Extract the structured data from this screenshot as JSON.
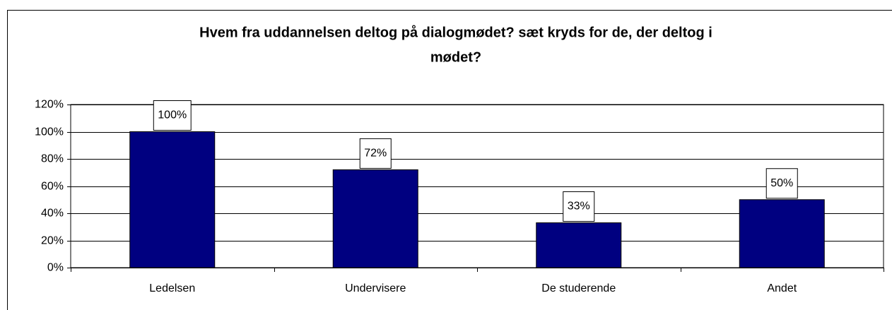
{
  "chart_data": {
    "type": "bar",
    "title": "Hvem fra uddannelsen deltog på dialogmødet? sæt kryds for de, der deltog i mødet?",
    "categories": [
      "Ledelsen",
      "Undervisere",
      "De studerende",
      "Andet"
    ],
    "values": [
      100,
      72,
      33,
      50
    ],
    "value_labels": [
      "100%",
      "72%",
      "33%",
      "50%"
    ],
    "color": "#000080",
    "ylim": [
      0,
      120
    ],
    "yticks": [
      {
        "value": 0,
        "label": "0%"
      },
      {
        "value": 20,
        "label": "20%"
      },
      {
        "value": 40,
        "label": "40%"
      },
      {
        "value": 60,
        "label": "60%"
      },
      {
        "value": 80,
        "label": "80%"
      },
      {
        "value": 100,
        "label": "100%"
      },
      {
        "value": 120,
        "label": "120%"
      }
    ],
    "grid": true
  }
}
